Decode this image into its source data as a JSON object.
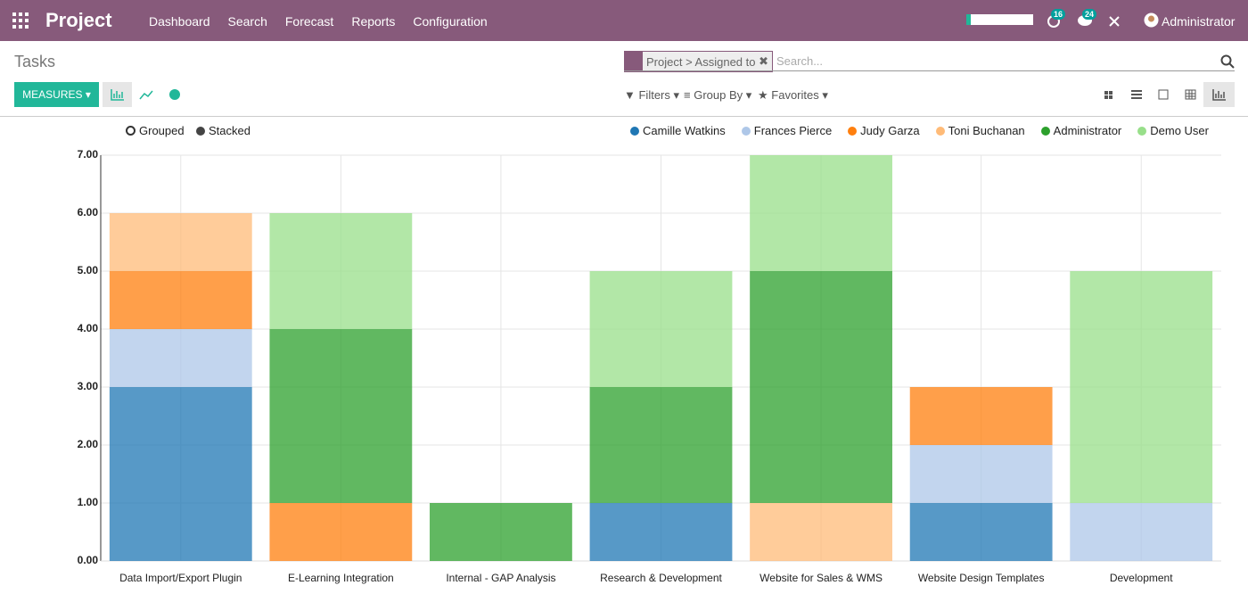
{
  "ui": {
    "app_name": "Project",
    "nav": [
      "Dashboard",
      "Search",
      "Forecast",
      "Reports",
      "Configuration"
    ],
    "activity_count": "16",
    "message_count": "24",
    "user": "Administrator",
    "page_title": "Tasks",
    "measures": "MEASURES",
    "facet": "Project > Assigned to",
    "search_placeholder": "Search...",
    "filters": "Filters",
    "group_by": "Group By",
    "favorites": "Favorites",
    "grouped": "Grouped",
    "stacked": "Stacked"
  },
  "chart_data": {
    "type": "bar",
    "stacked": true,
    "grid": true,
    "legend": "top-right",
    "categories": [
      "Data Import/Export Plugin",
      "E-Learning Integration",
      "Internal - GAP Analysis",
      "Research & Development",
      "Website for Sales & WMS",
      "Website Design Templates",
      "Development"
    ],
    "series": [
      {
        "name": "Camille Watkins",
        "color": "#1f77b4",
        "values": [
          3,
          0,
          0,
          1,
          0,
          1,
          0
        ]
      },
      {
        "name": "Frances Pierce",
        "color": "#aec7e8",
        "values": [
          1,
          0,
          0,
          0,
          0,
          1,
          1
        ]
      },
      {
        "name": "Judy Garza",
        "color": "#ff7f0e",
        "values": [
          1,
          1,
          0,
          0,
          0,
          1,
          0
        ]
      },
      {
        "name": "Toni Buchanan",
        "color": "#ffbb78",
        "values": [
          1,
          0,
          0,
          0,
          1,
          0,
          0
        ]
      },
      {
        "name": "Administrator",
        "color": "#2ca02c",
        "values": [
          0,
          3,
          1,
          2,
          4,
          0,
          0
        ]
      },
      {
        "name": "Demo User",
        "color": "#98df8a",
        "values": [
          0,
          2,
          0,
          2,
          2,
          0,
          4
        ]
      }
    ],
    "ylim": [
      0,
      7
    ],
    "yticks": [
      {
        "value": 0,
        "label": "0.00"
      },
      {
        "value": 1,
        "label": "1.00"
      },
      {
        "value": 2,
        "label": "2.00"
      },
      {
        "value": 3,
        "label": "3.00"
      },
      {
        "value": 4,
        "label": "4.00"
      },
      {
        "value": 5,
        "label": "5.00"
      },
      {
        "value": 6,
        "label": "6.00"
      },
      {
        "value": 7,
        "label": "7.00"
      }
    ]
  }
}
